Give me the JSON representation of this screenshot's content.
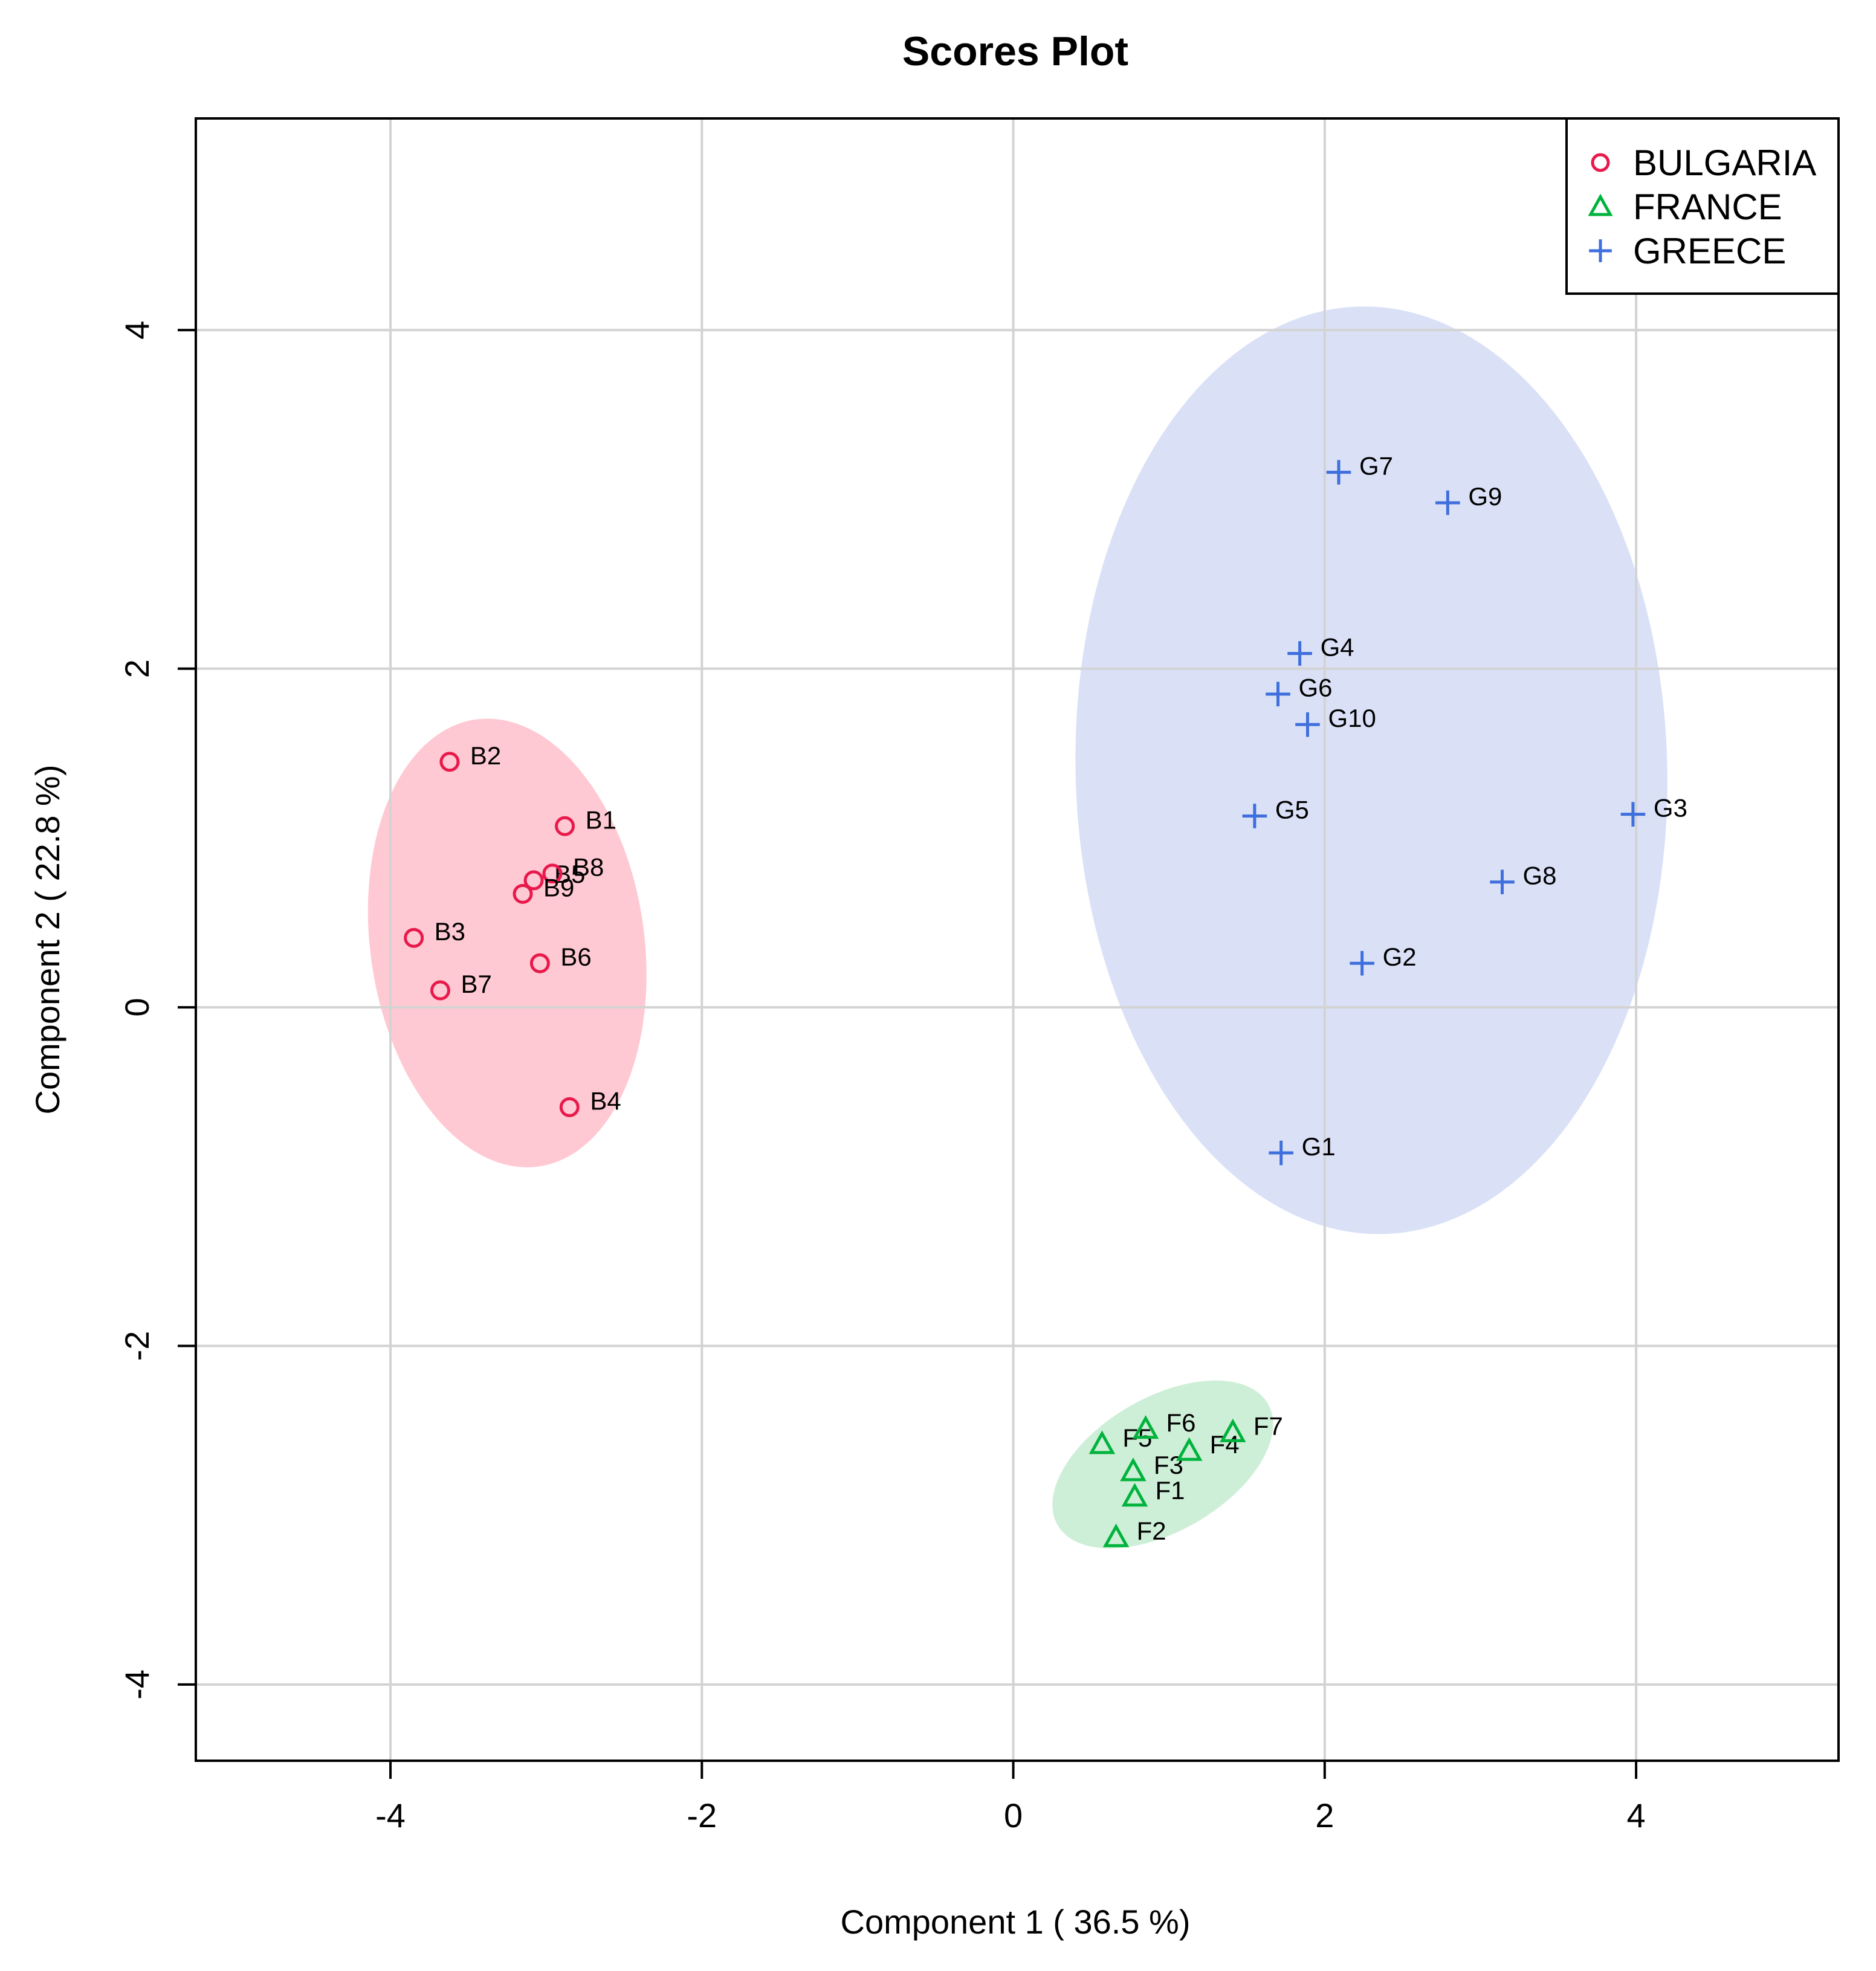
{
  "chart_data": {
    "type": "scatter",
    "title": "Scores Plot",
    "xlabel": "Component 1 ( 36.5 %)",
    "ylabel": "Component 2 ( 22.8 %)",
    "xlim": [
      -5.25,
      5.3
    ],
    "ylim": [
      -4.45,
      5.25
    ],
    "xticks": [
      -4,
      -2,
      0,
      2,
      4
    ],
    "yticks": [
      -4,
      -2,
      0,
      2,
      4
    ],
    "xtick_labels": [
      "-4",
      "-2",
      "0",
      "2",
      "4"
    ],
    "ytick_labels": [
      "-4",
      "-2",
      "0",
      "2",
      "4"
    ],
    "grid": true,
    "legend_position": "top-right",
    "series": [
      {
        "name": "BULGARIA",
        "marker": "circle",
        "color": "#e8194b",
        "ellipse_color": "#ffc0cb",
        "ellipse": {
          "cx": -3.25,
          "cy": 0.38,
          "rx": 0.88,
          "ry": 1.45,
          "angle": -8
        },
        "points": [
          {
            "label": "B1",
            "x": -2.88,
            "y": 1.07
          },
          {
            "label": "B2",
            "x": -3.62,
            "y": 1.45
          },
          {
            "label": "B3",
            "x": -3.85,
            "y": 0.41
          },
          {
            "label": "B4",
            "x": -2.85,
            "y": -0.59
          },
          {
            "label": "B5",
            "x": -3.08,
            "y": 0.75
          },
          {
            "label": "B6",
            "x": -3.04,
            "y": 0.26
          },
          {
            "label": "B7",
            "x": -3.68,
            "y": 0.1
          },
          {
            "label": "B8",
            "x": -2.96,
            "y": 0.79
          },
          {
            "label": "B9",
            "x": -3.15,
            "y": 0.67
          }
        ]
      },
      {
        "name": "FRANCE",
        "marker": "triangle",
        "color": "#00b33c",
        "ellipse_color": "#c5ecd0",
        "ellipse": {
          "cx": 0.96,
          "cy": -2.7,
          "rx": 0.78,
          "ry": 0.43,
          "angle": -30
        },
        "points": [
          {
            "label": "F1",
            "x": 0.78,
            "y": -2.89
          },
          {
            "label": "F2",
            "x": 0.66,
            "y": -3.13
          },
          {
            "label": "F3",
            "x": 0.77,
            "y": -2.74
          },
          {
            "label": "F4",
            "x": 1.13,
            "y": -2.62
          },
          {
            "label": "F5",
            "x": 0.57,
            "y": -2.58
          },
          {
            "label": "F6",
            "x": 0.85,
            "y": -2.49
          },
          {
            "label": "F7",
            "x": 1.41,
            "y": -2.51
          }
        ]
      },
      {
        "name": "GREECE",
        "marker": "plus",
        "color": "#3f6fdc",
        "ellipse_color": "#d3dcf6",
        "ellipse": {
          "cx": 2.3,
          "cy": 1.4,
          "rx": 1.9,
          "ry": 2.98,
          "angle": -1.5
        },
        "points": [
          {
            "label": "G1",
            "x": 1.72,
            "y": -0.86
          },
          {
            "label": "G2",
            "x": 2.24,
            "y": 0.26
          },
          {
            "label": "G3",
            "x": 3.98,
            "y": 1.14
          },
          {
            "label": "G4",
            "x": 1.84,
            "y": 2.09
          },
          {
            "label": "G5",
            "x": 1.55,
            "y": 1.13
          },
          {
            "label": "G6",
            "x": 1.7,
            "y": 1.85
          },
          {
            "label": "G7",
            "x": 2.09,
            "y": 3.16
          },
          {
            "label": "G8",
            "x": 3.14,
            "y": 0.74
          },
          {
            "label": "G9",
            "x": 2.79,
            "y": 2.98
          },
          {
            "label": "G10",
            "x": 1.89,
            "y": 1.67
          }
        ]
      }
    ]
  }
}
